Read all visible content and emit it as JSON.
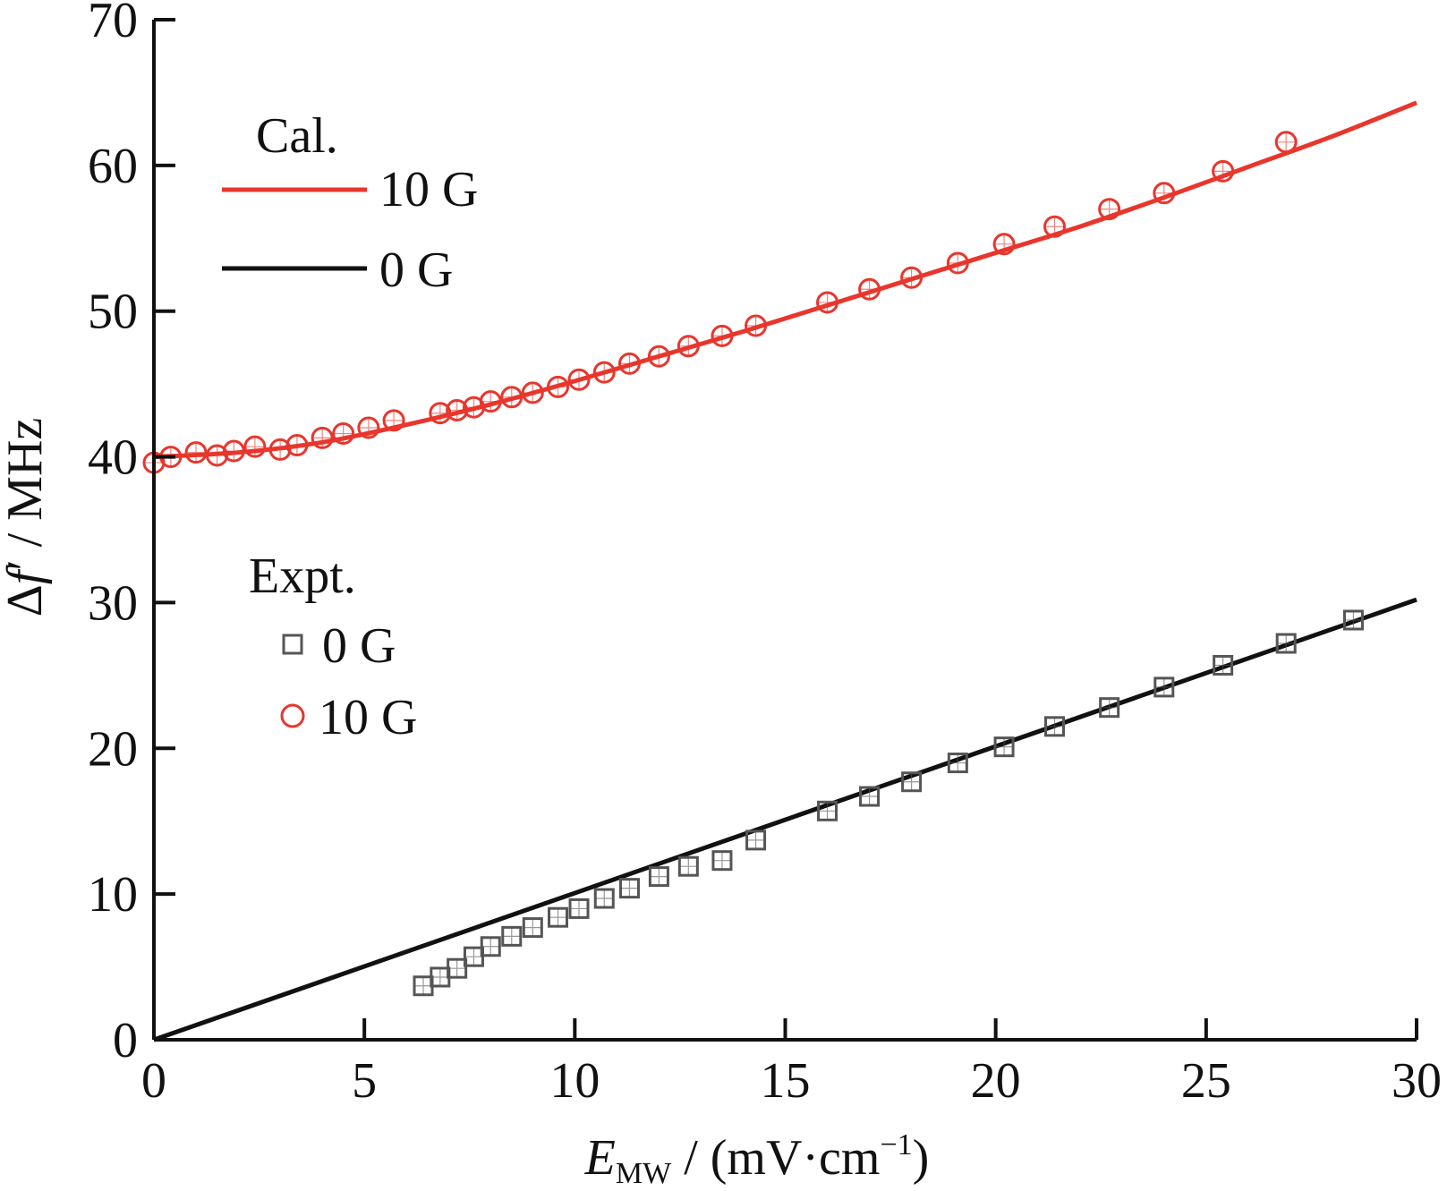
{
  "chart_data": {
    "type": "scatter",
    "title": "",
    "xlabel": {
      "main": "E",
      "sub": "MW",
      "rest": " / (mV·cm",
      "sup": "−1",
      "end": ")"
    },
    "ylabel": {
      "pre": "Δ",
      "var": "f",
      "rest": "′ / MHz"
    },
    "xlim": [
      0,
      30
    ],
    "ylim": [
      0,
      70
    ],
    "xticks": [
      "0",
      "5",
      "10",
      "15",
      "20",
      "25",
      "30"
    ],
    "yticks": [
      "0",
      "10",
      "20",
      "30",
      "40",
      "50",
      "60",
      "70"
    ],
    "legend": {
      "cal_heading": "Cal.",
      "cal_items": [
        {
          "label": "10 G",
          "color": "#e8362d"
        },
        {
          "label": "0 G",
          "color": "#111111"
        }
      ],
      "expt_heading": "Expt.",
      "expt_items": [
        {
          "label": "0 G",
          "marker": "square",
          "color": "#555555"
        },
        {
          "label": "10 G",
          "marker": "circle",
          "color": "#e8362d"
        }
      ]
    },
    "series": [
      {
        "type": "line",
        "color": "#e8362d",
        "x": [
          0,
          2,
          4,
          6,
          8,
          10,
          12,
          14,
          16,
          18,
          20,
          22,
          24,
          26,
          28,
          30
        ],
        "y": [
          40.0,
          40.3,
          41.0,
          42.2,
          43.6,
          45.2,
          46.9,
          48.6,
          50.4,
          52.2,
          54.0,
          55.8,
          57.8,
          59.9,
          62.0,
          64.3
        ]
      },
      {
        "type": "line",
        "color": "#111111",
        "x": [
          0,
          30
        ],
        "y": [
          0,
          30.2
        ]
      },
      {
        "type": "scatter",
        "marker": "square",
        "color": "#555555",
        "x": [
          6.4,
          6.8,
          7.2,
          7.6,
          8.0,
          8.5,
          9.0,
          9.6,
          10.1,
          10.7,
          11.3,
          12.0,
          12.7,
          13.5,
          14.3,
          16.0,
          17.0,
          18.0,
          19.1,
          20.2,
          21.4,
          22.7,
          24.0,
          25.4,
          26.9,
          28.5
        ],
        "y": [
          3.7,
          4.3,
          4.9,
          5.7,
          6.4,
          7.1,
          7.7,
          8.4,
          9.0,
          9.7,
          10.4,
          11.2,
          11.9,
          12.3,
          13.7,
          15.7,
          16.7,
          17.7,
          19.0,
          20.1,
          21.5,
          22.8,
          24.2,
          25.7,
          27.2,
          28.8
        ]
      },
      {
        "type": "scatter",
        "marker": "circle",
        "color": "#e8362d",
        "x": [
          0.0,
          0.4,
          1.0,
          1.5,
          1.9,
          2.4,
          3.0,
          3.4,
          4.0,
          4.5,
          5.1,
          5.7,
          6.8,
          7.2,
          7.6,
          8.0,
          8.5,
          9.0,
          9.6,
          10.1,
          10.7,
          11.3,
          12.0,
          12.7,
          13.5,
          14.3,
          16.0,
          17.0,
          18.0,
          19.1,
          20.2,
          21.4,
          22.7,
          24.0,
          25.4,
          26.9
        ],
        "y": [
          39.6,
          40.0,
          40.3,
          40.1,
          40.4,
          40.7,
          40.5,
          40.8,
          41.3,
          41.6,
          42.0,
          42.5,
          43.0,
          43.2,
          43.4,
          43.8,
          44.1,
          44.4,
          44.8,
          45.3,
          45.8,
          46.4,
          46.9,
          47.6,
          48.3,
          49.0,
          50.6,
          51.5,
          52.3,
          53.3,
          54.6,
          55.8,
          57.0,
          58.1,
          59.6,
          61.6
        ]
      }
    ]
  }
}
